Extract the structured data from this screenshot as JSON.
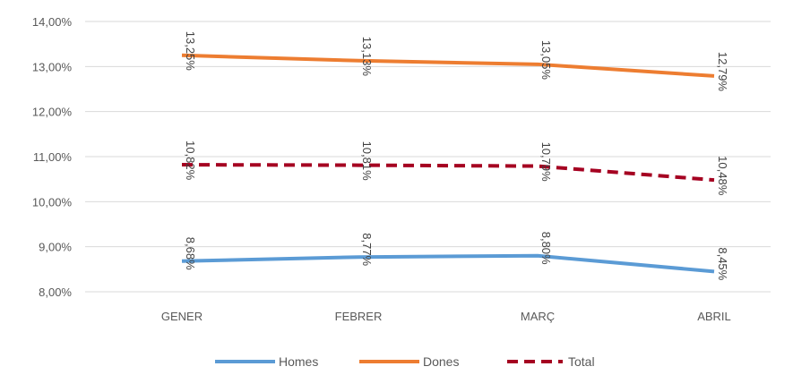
{
  "chart_data": {
    "type": "line",
    "title": "",
    "xlabel": "",
    "ylabel": "",
    "categories": [
      "GENER",
      "FEBRER",
      "MARÇ",
      "ABRIL"
    ],
    "ylim": [
      8,
      14
    ],
    "yticks": [
      8,
      9,
      10,
      11,
      12,
      13,
      14
    ],
    "ytick_labels": [
      "8,00%",
      "9,00%",
      "10,00%",
      "11,00%",
      "12,00%",
      "13,00%",
      "14,00%"
    ],
    "grid": true,
    "legend_position": "bottom",
    "series": [
      {
        "name": "Homes",
        "color": "#5B9BD5",
        "dash": "solid",
        "values": [
          8.68,
          8.77,
          8.8,
          8.45
        ],
        "labels": [
          "8,68%",
          "8,77%",
          "8,80%",
          "8,45%"
        ]
      },
      {
        "name": "Dones",
        "color": "#ED7D31",
        "dash": "solid",
        "values": [
          13.25,
          13.13,
          13.05,
          12.79
        ],
        "labels": [
          "13,25%",
          "13,13%",
          "13,05%",
          "12,79%"
        ]
      },
      {
        "name": "Total",
        "color": "#A50021",
        "dash": "dashed",
        "values": [
          10.82,
          10.81,
          10.79,
          10.48
        ],
        "labels": [
          "10,82%",
          "10,81%",
          "10,79%",
          "10,48%"
        ]
      }
    ]
  }
}
